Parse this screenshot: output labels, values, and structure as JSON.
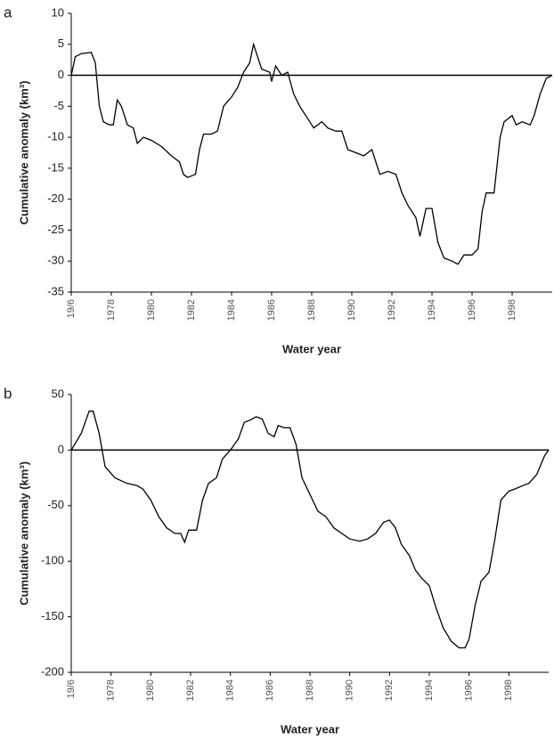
{
  "chart_data": [
    {
      "type": "line",
      "panel_label": "a",
      "y_label": "Cumulative anomaly (km³)",
      "x_label": "Water year",
      "xlim": [
        1976,
        2000
      ],
      "ylim": [
        -35,
        10
      ],
      "yticks": [
        -35,
        -30,
        -25,
        -20,
        -15,
        -10,
        -5,
        0,
        5,
        10
      ],
      "xticks": [
        {
          "value": 1976,
          "label": "19/6"
        },
        1978,
        1980,
        1982,
        1984,
        1986,
        1988,
        1990,
        1992,
        1994,
        1996,
        1998
      ],
      "color": "#000000",
      "x": [
        1976.0,
        1976.2,
        1976.5,
        1977.0,
        1977.2,
        1977.4,
        1977.6,
        1977.9,
        1978.1,
        1978.3,
        1978.5,
        1978.8,
        1979.1,
        1979.3,
        1979.6,
        1980.0,
        1980.5,
        1981.0,
        1981.4,
        1981.6,
        1981.8,
        1982.2,
        1982.4,
        1982.6,
        1983.0,
        1983.3,
        1983.6,
        1984.0,
        1984.3,
        1984.6,
        1984.9,
        1985.1,
        1985.3,
        1985.5,
        1985.9,
        1986.0,
        1986.2,
        1986.5,
        1986.8,
        1987.1,
        1987.4,
        1987.8,
        1988.1,
        1988.5,
        1988.8,
        1989.2,
        1989.5,
        1989.8,
        1990.2,
        1990.6,
        1991.0,
        1991.2,
        1991.4,
        1991.8,
        1992.2,
        1992.5,
        1992.8,
        1993.2,
        1993.4,
        1993.7,
        1994.0,
        1994.3,
        1994.6,
        1995.0,
        1995.3,
        1995.6,
        1996.0,
        1996.3,
        1996.5,
        1996.7,
        1997.1,
        1997.4,
        1997.6,
        1998.0,
        1998.2,
        1998.5,
        1998.9,
        1999.1,
        1999.4,
        1999.7,
        2000.0
      ],
      "values": [
        0,
        3,
        3.5,
        3.7,
        2,
        -5,
        -7.5,
        -8,
        -8,
        -4,
        -5,
        -8,
        -8.5,
        -11,
        -10,
        -10.5,
        -11.5,
        -13,
        -14,
        -16,
        -16.5,
        -16,
        -12,
        -9.5,
        -9.5,
        -9,
        -5,
        -3.5,
        -2,
        0.5,
        2,
        5,
        3,
        1,
        0.5,
        -1,
        1.5,
        0,
        0.5,
        -3,
        -5,
        -7,
        -8.5,
        -7.5,
        -8.5,
        -9,
        -9,
        -12,
        -12.5,
        -13,
        -12,
        -14,
        -16,
        -15.5,
        -16,
        -19,
        -21,
        -23,
        -26,
        -21.5,
        -21.5,
        -27,
        -29.5,
        -30,
        -30.5,
        -29,
        -29,
        -28,
        -22,
        -19,
        -19,
        -10,
        -7.5,
        -6.5,
        -8,
        -7.5,
        -8,
        -6.5,
        -3,
        -0.5,
        0
      ]
    },
    {
      "type": "line",
      "panel_label": "b",
      "y_label": "Cumulative anomaly (km³)",
      "x_label": "Water year",
      "xlim": [
        1976,
        2000
      ],
      "ylim": [
        -200,
        50
      ],
      "yticks": [
        -200,
        -150,
        -100,
        -50,
        0,
        50
      ],
      "xticks": [
        {
          "value": 1976,
          "label": "19/6"
        },
        1978,
        1980,
        1982,
        1984,
        1986,
        1988,
        1990,
        1992,
        1994,
        1996,
        1998
      ],
      "color": "#000000",
      "x": [
        1976.0,
        1976.5,
        1976.9,
        1977.1,
        1977.4,
        1977.7,
        1978.2,
        1978.8,
        1979.3,
        1979.6,
        1980.0,
        1980.4,
        1980.8,
        1981.2,
        1981.5,
        1981.7,
        1981.9,
        1982.3,
        1982.6,
        1982.9,
        1983.3,
        1983.6,
        1984.0,
        1984.4,
        1984.7,
        1985.0,
        1985.3,
        1985.6,
        1985.9,
        1986.2,
        1986.4,
        1986.7,
        1987.0,
        1987.3,
        1987.6,
        1988.0,
        1988.4,
        1988.8,
        1989.2,
        1989.6,
        1990.0,
        1990.5,
        1990.9,
        1991.3,
        1991.7,
        1992.0,
        1992.3,
        1992.6,
        1993.0,
        1993.3,
        1993.6,
        1994.0,
        1994.3,
        1994.7,
        1995.1,
        1995.5,
        1995.8,
        1996.0,
        1996.3,
        1996.6,
        1997.0,
        1997.3,
        1997.6,
        1998.0,
        1998.3,
        1998.7,
        1999.0,
        1999.4,
        1999.8,
        2000.0
      ],
      "values": [
        0,
        15,
        35,
        35,
        15,
        -15,
        -25,
        -30,
        -32,
        -35,
        -45,
        -60,
        -70,
        -75,
        -75,
        -83,
        -72,
        -72,
        -45,
        -30,
        -25,
        -8,
        0,
        10,
        25,
        27,
        30,
        28,
        15,
        12,
        22,
        20,
        20,
        5,
        -25,
        -40,
        -55,
        -60,
        -70,
        -75,
        -80,
        -82,
        -80,
        -75,
        -65,
        -63,
        -70,
        -85,
        -95,
        -108,
        -115,
        -122,
        -140,
        -160,
        -172,
        -178,
        -178,
        -170,
        -140,
        -118,
        -110,
        -80,
        -45,
        -37,
        -35,
        -32,
        -30,
        -22,
        -5,
        0
      ]
    }
  ]
}
